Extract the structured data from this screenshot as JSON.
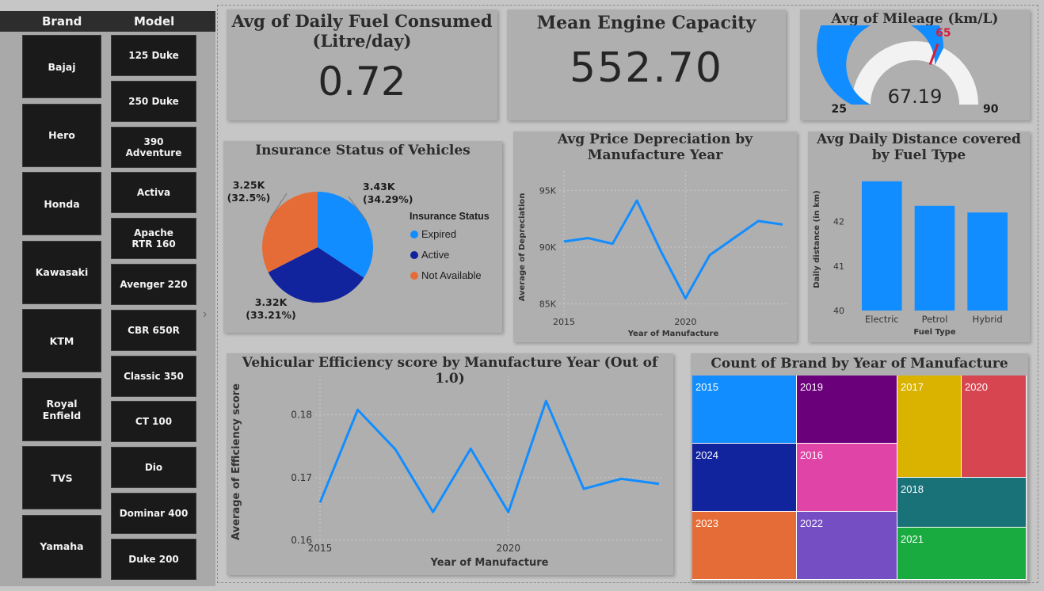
{
  "slicer": {
    "brand_header": "Brand",
    "model_header": "Model",
    "brands": [
      "Bajaj",
      "Hero",
      "Honda",
      "Kawasaki",
      "KTM",
      "Royal Enfield",
      "TVS",
      "Yamaha"
    ],
    "models": [
      "125 Duke",
      "250 Duke",
      "390 Adventure",
      "Activa",
      "Apache RTR 160",
      "Avenger 220",
      "CBR 650R",
      "Classic 350",
      "CT 100",
      "Dio",
      "Dominar 400",
      "Duke 200"
    ]
  },
  "kpi_fuel": {
    "title": "Avg of Daily Fuel Consumed (Litre/day)",
    "value": "0.72"
  },
  "kpi_engine": {
    "title": "Mean Engine Capacity",
    "value": "552.70"
  },
  "chart_data": [
    {
      "type": "gauge",
      "title": "Avg of Mileage (km/L)",
      "value": 67.19,
      "value_label": "67.19",
      "min": 25,
      "max": 90,
      "target": 65,
      "min_label": "25",
      "max_label": "90",
      "target_label": "65"
    },
    {
      "type": "pie",
      "title": "Insurance Status of Vehicles",
      "legend_title": "Insurance Status",
      "categories": [
        "Expired",
        "Active",
        "Not Available"
      ],
      "values": [
        3430,
        3320,
        3250
      ],
      "labels": [
        [
          "3.43K",
          "(34.29%)"
        ],
        [
          "3.32K",
          "(33.21%)"
        ],
        [
          "3.25K",
          "(32.5%)"
        ]
      ],
      "colors": [
        "#118dff",
        "#12239e",
        "#e66c37"
      ]
    },
    {
      "type": "line",
      "title": "Avg Price Depreciation by Manufacture Year",
      "xlabel": "Year of Manufacture",
      "ylabel": "Average of Depreciation",
      "x": [
        2015,
        2016,
        2017,
        2018,
        2019,
        2020,
        2021,
        2022,
        2023,
        2024
      ],
      "values": [
        90500,
        90800,
        90300,
        94100,
        89600,
        85500,
        89300,
        90800,
        92300,
        92000
      ],
      "ylim": [
        84000,
        96000
      ],
      "yticks": [
        85000,
        90000,
        95000
      ],
      "ytick_labels": [
        "85K",
        "90K",
        "95K"
      ],
      "xticks": [
        2015,
        2020
      ],
      "xtick_labels": [
        "2015",
        "2020"
      ],
      "color": "#118dff"
    },
    {
      "type": "bar",
      "title": "Avg Daily Distance covered by Fuel Type",
      "xlabel": "Fuel Type",
      "ylabel": "Daily distance (in km)",
      "categories": [
        "Electric",
        "Petrol",
        "Hybrid"
      ],
      "values": [
        42.9,
        42.35,
        42.2
      ],
      "ylim": [
        40,
        43.2
      ],
      "yticks": [
        40,
        41,
        42
      ],
      "ytick_labels": [
        "40",
        "41",
        "42"
      ],
      "color": "#118dff"
    },
    {
      "type": "line",
      "title": "Vehicular Efficiency score by Manufacture Year (Out of 1.0)",
      "xlabel": "Year of Manufacture",
      "ylabel": "Average of Efficiency score",
      "x": [
        2015,
        2016,
        2017,
        2018,
        2019,
        2020,
        2021,
        2022,
        2023,
        2024
      ],
      "values": [
        0.166,
        0.1808,
        0.1745,
        0.1645,
        0.1746,
        0.1645,
        0.1822,
        0.1682,
        0.1698,
        0.169
      ],
      "ylim": [
        0.16,
        0.185
      ],
      "yticks": [
        0.16,
        0.17,
        0.18
      ],
      "ytick_labels": [
        "0.16",
        "0.17",
        "0.18"
      ],
      "xticks": [
        2015,
        2020
      ],
      "xtick_labels": [
        "2015",
        "2020"
      ],
      "color": "#118dff"
    },
    {
      "type": "treemap",
      "title": "Count of Brand by Year of Manufacture",
      "cells": [
        {
          "label": "2015",
          "color": "#118dff"
        },
        {
          "label": "2024",
          "color": "#12239e"
        },
        {
          "label": "2023",
          "color": "#e66c37"
        },
        {
          "label": "2019",
          "color": "#6b007b"
        },
        {
          "label": "2016",
          "color": "#e044a7"
        },
        {
          "label": "2022",
          "color": "#744ec2"
        },
        {
          "label": "2017",
          "color": "#d9b300"
        },
        {
          "label": "2020",
          "color": "#d64550"
        },
        {
          "label": "2018",
          "color": "#197278"
        },
        {
          "label": "2021",
          "color": "#1aab40"
        }
      ]
    }
  ]
}
